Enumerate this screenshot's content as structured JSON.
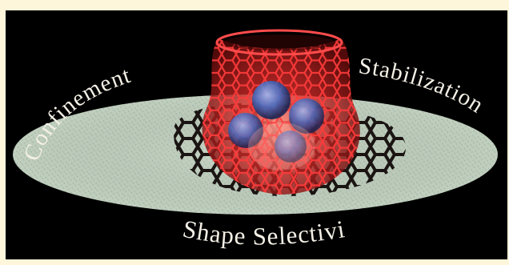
{
  "labels": {
    "left": "Confinement",
    "right": "Stabilization",
    "bottom": "Shape Selectivity"
  }
}
